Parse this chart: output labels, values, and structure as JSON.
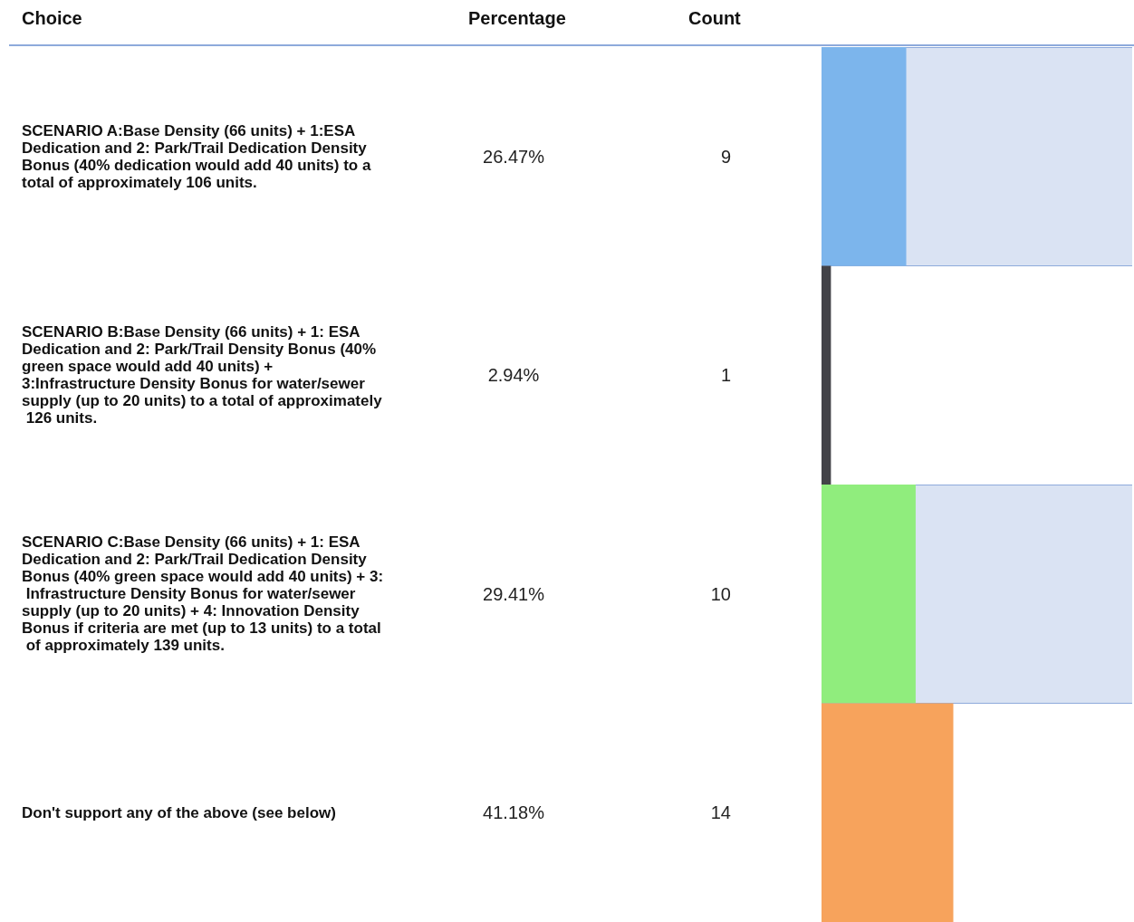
{
  "chart_data": {
    "type": "bar",
    "orientation": "horizontal",
    "ylabel": "Choice",
    "xlabel": "Count",
    "categories": [
      "SCENARIO A:Base Density (66 units) + 1:ESA Dedication and 2: Park/Trail Dedication Density Bonus (40% dedication would add 40 units) to a total of approximately 106 units.",
      "SCENARIO B:Base Density (66 units) + 1: ESA Dedication and 2: Park/Trail Density Bonus (40% green space would add 40 units) + 3:Infrastructure Density Bonus for water/sewer supply (up to 20 units) to a total of approximately 126 units.",
      "SCENARIO C:Base Density (66 units) + 1: ESA Dedication and 2: Park/Trail Dedication Density Bonus (40% green space would add 40 units) + 3: Infrastructure Density Bonus for water/sewer supply (up to 20 units) + 4: Innovation Density Bonus if criteria are met (up to 13 units) to a total of approximately 139 units.",
      "Don't support any of the above (see below)"
    ],
    "values": [
      9,
      1,
      10,
      14
    ],
    "colors": [
      "#7cb5ec",
      "#434348",
      "#90ed7d",
      "#f7a35c"
    ],
    "data_labels": true,
    "xlim": [
      0,
      33
    ],
    "annotations": [
      "Percentage",
      "26.47%",
      "2.94%",
      "29.41%",
      "41.18%"
    ]
  }
}
